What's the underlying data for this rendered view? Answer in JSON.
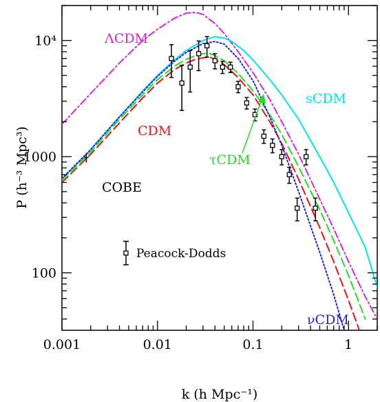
{
  "chart_data": {
    "type": "line",
    "title": "",
    "xlabel": "k (h Mpc⁻¹)",
    "ylabel": "P (h⁻³ Mpc³)",
    "xscale": "log",
    "yscale": "log",
    "xlim": [
      0.001,
      2
    ],
    "ylim": [
      32,
      20000
    ],
    "x_ticks": [
      {
        "value": 0.001,
        "label": "0.001"
      },
      {
        "value": 0.01,
        "label": "0.01"
      },
      {
        "value": 0.1,
        "label": "0.1"
      },
      {
        "value": 1,
        "label": "1"
      }
    ],
    "y_ticks": [
      {
        "value": 100,
        "label": "100"
      },
      {
        "value": 1000,
        "label": "1000"
      },
      {
        "value": 10000,
        "label": "10⁴"
      }
    ],
    "grid": false,
    "series": [
      {
        "name": "ΛCDM",
        "color": "#dd22dd",
        "dash": "dashdot",
        "x": [
          0.001,
          0.002,
          0.004,
          0.007,
          0.01,
          0.015,
          0.02,
          0.025,
          0.03,
          0.04,
          0.05,
          0.07,
          0.1,
          0.15,
          0.2,
          0.3,
          0.5,
          0.7,
          1.0,
          1.5,
          2.0
        ],
        "y": [
          1900,
          3500,
          6400,
          10000,
          12500,
          15500,
          17200,
          17500,
          16800,
          14000,
          11500,
          8000,
          5300,
          3100,
          2000,
          1050,
          430,
          240,
          125,
          62,
          40
        ]
      },
      {
        "name": "sCDM",
        "color": "#00e5ee",
        "dash": "solid",
        "x": [
          0.001,
          0.002,
          0.004,
          0.007,
          0.01,
          0.015,
          0.02,
          0.03,
          0.04,
          0.05,
          0.06,
          0.08,
          0.1,
          0.15,
          0.2,
          0.3,
          0.5,
          0.7,
          1.0,
          1.5,
          2.0
        ],
        "y": [
          640,
          1150,
          2200,
          3700,
          5000,
          6800,
          8200,
          10000,
          10800,
          10500,
          9800,
          8200,
          6800,
          4600,
          3400,
          2100,
          1000,
          600,
          330,
          165,
          75
        ]
      },
      {
        "name": "CDM",
        "color": "#ee1111",
        "dash": "dashed",
        "x": [
          0.001,
          0.002,
          0.004,
          0.007,
          0.01,
          0.015,
          0.02,
          0.025,
          0.03,
          0.035,
          0.04,
          0.05,
          0.07,
          0.1,
          0.15,
          0.2,
          0.3,
          0.5,
          0.7,
          1.0,
          1.3
        ],
        "y": [
          600,
          1050,
          1950,
          3200,
          4300,
          5600,
          6400,
          6900,
          7100,
          7200,
          6900,
          6200,
          4800,
          3400,
          2000,
          1300,
          640,
          245,
          125,
          58,
          32
        ]
      },
      {
        "name": "τCDM",
        "color": "#22dd22",
        "dash": "dashed",
        "x": [
          0.001,
          0.002,
          0.004,
          0.007,
          0.01,
          0.015,
          0.02,
          0.025,
          0.03,
          0.035,
          0.04,
          0.05,
          0.07,
          0.1,
          0.15,
          0.2,
          0.3,
          0.5,
          0.7,
          1.0,
          1.5
        ],
        "y": [
          630,
          1100,
          2100,
          3400,
          4600,
          6000,
          6900,
          7400,
          7700,
          7750,
          7400,
          6700,
          5200,
          3700,
          2300,
          1550,
          820,
          350,
          190,
          95,
          40
        ]
      },
      {
        "name": "νCDM",
        "color": "#2222dd",
        "dash": "dotted",
        "x": [
          0.001,
          0.002,
          0.004,
          0.007,
          0.01,
          0.015,
          0.02,
          0.03,
          0.04,
          0.05,
          0.07,
          0.1,
          0.15,
          0.2,
          0.3,
          0.5,
          0.7,
          0.9
        ],
        "y": [
          650,
          1150,
          2200,
          3600,
          4900,
          6600,
          7900,
          9400,
          9800,
          9300,
          7000,
          4500,
          2200,
          1250,
          500,
          150,
          65,
          32
        ]
      }
    ],
    "data_points": {
      "name": "Peacock-Dodds",
      "x": [
        0.014,
        0.018,
        0.022,
        0.027,
        0.033,
        0.04,
        0.048,
        0.058,
        0.07,
        0.086,
        0.105,
        0.13,
        0.16,
        0.2,
        0.24,
        0.29,
        0.36,
        0.45
      ],
      "y": [
        7000,
        4300,
        5900,
        7700,
        9000,
        6700,
        5900,
        5900,
        4000,
        2900,
        2300,
        1500,
        1250,
        1000,
        700,
        360,
        1000,
        360
      ],
      "yerr_low": [
        2200,
        1800,
        2300,
        2200,
        1800,
        1000,
        700,
        600,
        450,
        330,
        270,
        200,
        170,
        150,
        110,
        80,
        150,
        80
      ],
      "yerr_high": [
        2200,
        1800,
        2300,
        2200,
        1800,
        1000,
        700,
        600,
        450,
        330,
        270,
        200,
        170,
        150,
        110,
        80,
        150,
        80
      ]
    },
    "cobe_point": {
      "name": "COBE",
      "x": 0.0018,
      "y": 980,
      "yerr": 90
    },
    "curve_labels": [
      {
        "text": "ΛCDM",
        "color": "#dd22dd"
      },
      {
        "text": "sCDM",
        "color": "#00e5ee"
      },
      {
        "text": "CDM",
        "color": "#ee1111"
      },
      {
        "text": "τCDM",
        "color": "#22dd22"
      },
      {
        "text": "νCDM",
        "color": "#2222dd"
      },
      {
        "text": "COBE",
        "color": "#000000"
      }
    ],
    "legend": {
      "label": "Peacock-Dodds",
      "placement": "bottom-left"
    }
  }
}
